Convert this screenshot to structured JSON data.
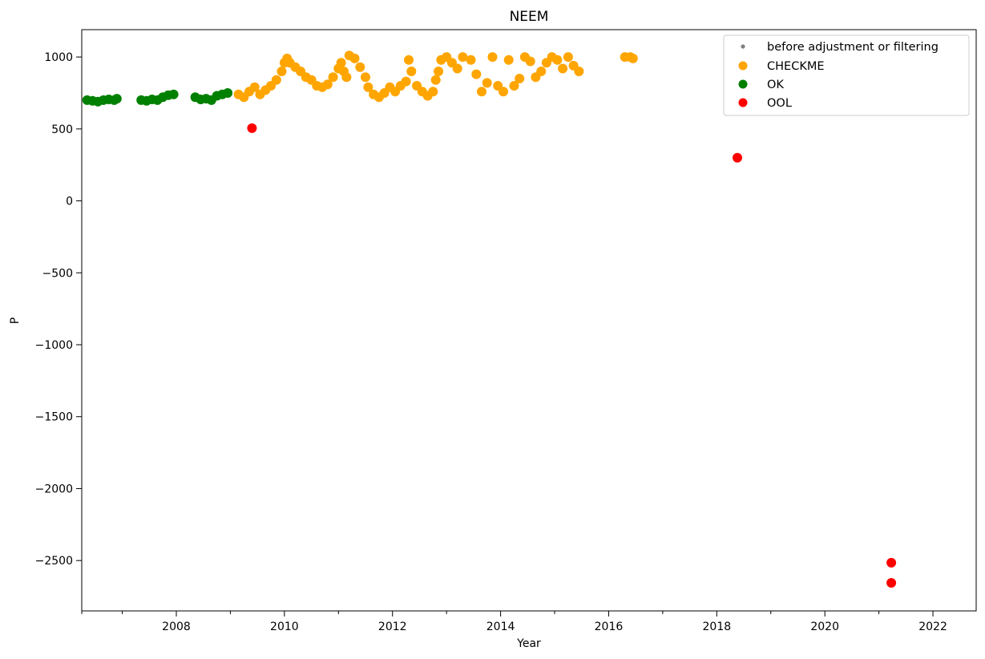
{
  "chart_data": {
    "type": "scatter",
    "title": "NEEM",
    "xlabel": "Year",
    "ylabel": "P",
    "xlim": [
      2006.25,
      2022.8
    ],
    "ylim": [
      -2850,
      1190
    ],
    "x_ticks": [
      2008,
      2010,
      2012,
      2014,
      2016,
      2018,
      2020,
      2022
    ],
    "x_tick_labels": [
      "2008",
      "2010",
      "2012",
      "2014",
      "2016",
      "2018",
      "2020",
      "2022"
    ],
    "x_minor_ticks": [
      2006.25,
      2007.0,
      2009.0,
      2011.0,
      2013.0,
      2015.0,
      2017.0,
      2019.0,
      2021.0
    ],
    "y_ticks": [
      1000,
      500,
      0,
      -500,
      -1000,
      -1500,
      -2000,
      -2500
    ],
    "y_tick_labels": [
      "1000",
      "500",
      "0",
      "−500",
      "−1000",
      "−1500",
      "−2000",
      "−2500"
    ],
    "grid": false,
    "legend_position": "top-right",
    "series": [
      {
        "name": "before adjustment or filtering",
        "color": "#808080",
        "marker": "small-dot",
        "points": []
      },
      {
        "name": "CHECKME",
        "color": "#ffa500",
        "marker": "dot",
        "points": [
          [
            2009.15,
            740
          ],
          [
            2009.25,
            720
          ],
          [
            2009.35,
            760
          ],
          [
            2009.45,
            790
          ],
          [
            2009.55,
            740
          ],
          [
            2009.65,
            770
          ],
          [
            2009.75,
            800
          ],
          [
            2009.85,
            840
          ],
          [
            2009.95,
            900
          ],
          [
            2010.0,
            960
          ],
          [
            2010.05,
            990
          ],
          [
            2010.1,
            960
          ],
          [
            2010.2,
            930
          ],
          [
            2010.3,
            900
          ],
          [
            2010.4,
            860
          ],
          [
            2010.5,
            840
          ],
          [
            2010.6,
            800
          ],
          [
            2010.7,
            790
          ],
          [
            2010.8,
            810
          ],
          [
            2010.9,
            860
          ],
          [
            2011.0,
            920
          ],
          [
            2011.05,
            960
          ],
          [
            2011.1,
            900
          ],
          [
            2011.15,
            860
          ],
          [
            2011.2,
            1010
          ],
          [
            2011.3,
            990
          ],
          [
            2011.4,
            930
          ],
          [
            2011.5,
            860
          ],
          [
            2011.55,
            790
          ],
          [
            2011.65,
            740
          ],
          [
            2011.75,
            720
          ],
          [
            2011.85,
            750
          ],
          [
            2011.95,
            790
          ],
          [
            2012.05,
            760
          ],
          [
            2012.15,
            800
          ],
          [
            2012.25,
            830
          ],
          [
            2012.3,
            980
          ],
          [
            2012.35,
            900
          ],
          [
            2012.45,
            800
          ],
          [
            2012.55,
            760
          ],
          [
            2012.65,
            730
          ],
          [
            2012.75,
            760
          ],
          [
            2012.8,
            840
          ],
          [
            2012.85,
            900
          ],
          [
            2012.9,
            980
          ],
          [
            2013.0,
            1000
          ],
          [
            2013.1,
            960
          ],
          [
            2013.2,
            920
          ],
          [
            2013.3,
            1000
          ],
          [
            2013.45,
            980
          ],
          [
            2013.55,
            880
          ],
          [
            2013.65,
            760
          ],
          [
            2013.75,
            820
          ],
          [
            2013.85,
            1000
          ],
          [
            2013.95,
            800
          ],
          [
            2014.05,
            760
          ],
          [
            2014.15,
            980
          ],
          [
            2014.25,
            800
          ],
          [
            2014.35,
            850
          ],
          [
            2014.45,
            1000
          ],
          [
            2014.55,
            970
          ],
          [
            2014.65,
            860
          ],
          [
            2014.75,
            900
          ],
          [
            2014.85,
            960
          ],
          [
            2014.95,
            1000
          ],
          [
            2015.05,
            980
          ],
          [
            2015.15,
            920
          ],
          [
            2015.25,
            1000
          ],
          [
            2015.35,
            940
          ],
          [
            2015.45,
            900
          ],
          [
            2016.3,
            1000
          ],
          [
            2016.4,
            1000
          ],
          [
            2016.45,
            990
          ]
        ]
      },
      {
        "name": "OK",
        "color": "#008000",
        "marker": "dot",
        "points": [
          [
            2006.35,
            700
          ],
          [
            2006.45,
            695
          ],
          [
            2006.55,
            690
          ],
          [
            2006.65,
            700
          ],
          [
            2006.75,
            705
          ],
          [
            2006.85,
            700
          ],
          [
            2006.9,
            710
          ],
          [
            2007.35,
            700
          ],
          [
            2007.45,
            695
          ],
          [
            2007.55,
            705
          ],
          [
            2007.65,
            700
          ],
          [
            2007.75,
            720
          ],
          [
            2007.85,
            735
          ],
          [
            2007.95,
            740
          ],
          [
            2008.35,
            720
          ],
          [
            2008.45,
            705
          ],
          [
            2008.55,
            710
          ],
          [
            2008.65,
            700
          ],
          [
            2008.75,
            730
          ],
          [
            2008.85,
            740
          ],
          [
            2008.95,
            750
          ]
        ]
      },
      {
        "name": "OOL",
        "color": "#ff0000",
        "marker": "dot",
        "points": [
          [
            2009.4,
            505
          ],
          [
            2018.38,
            300
          ],
          [
            2021.23,
            -2515
          ],
          [
            2021.23,
            -2655
          ]
        ]
      }
    ]
  }
}
